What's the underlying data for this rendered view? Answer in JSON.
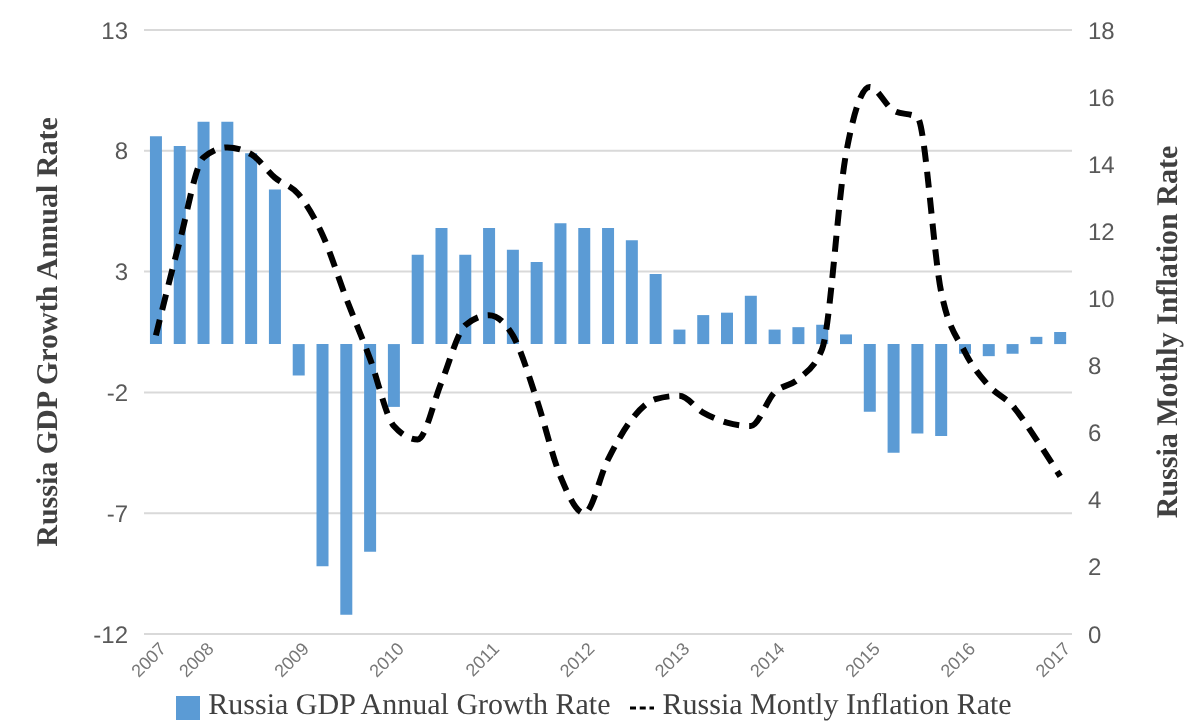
{
  "chart_data": {
    "type": "bar",
    "ylabel": "Russia GDP Growth Annual Rate",
    "y2label": "Russia Mothly Inflation Rate",
    "categories": [
      "2007",
      null,
      "2008",
      null,
      null,
      null,
      "2009",
      null,
      null,
      null,
      "2010",
      null,
      null,
      null,
      "2011",
      null,
      null,
      null,
      "2012",
      null,
      null,
      null,
      "2013",
      null,
      null,
      null,
      "2014",
      null,
      null,
      null,
      "2015",
      null,
      null,
      null,
      "2016",
      null,
      null,
      null,
      "2017"
    ],
    "series": [
      {
        "name": "Russia GDP Annual Growth Rate",
        "color": "#5b9bd5",
        "values": [
          8.6,
          8.2,
          9.2,
          9.2,
          7.9,
          6.4,
          -1.3,
          -9.2,
          -11.2,
          -8.6,
          -2.6,
          3.7,
          4.8,
          3.7,
          4.8,
          3.9,
          3.4,
          5.0,
          4.8,
          4.8,
          4.3,
          2.9,
          0.6,
          1.2,
          1.3,
          2.0,
          0.6,
          0.7,
          0.8,
          0.4,
          -2.8,
          -4.5,
          -3.7,
          -3.8,
          -0.4,
          -0.5,
          -0.4,
          0.3,
          0.5
        ]
      },
      {
        "name": "Russia Montly Inflation Rate",
        "type": "line",
        "axis": "y2",
        "color": "#000000",
        "line_style": "dashed",
        "values": [
          8.9,
          11.7,
          14.2,
          14.5,
          14.3,
          13.6,
          13.1,
          11.9,
          10.0,
          8.2,
          6.2,
          5.8,
          7.5,
          9.2,
          9.5,
          8.9,
          7.0,
          4.7,
          3.6,
          5.2,
          6.4,
          7.0,
          7.1,
          6.6,
          6.3,
          6.2,
          7.2,
          7.6,
          8.5,
          14.3,
          16.3,
          15.6,
          15.4,
          10.2,
          8.4,
          7.4,
          6.8,
          5.8,
          4.7
        ]
      }
    ],
    "ylim": [
      -12,
      13
    ],
    "yticks": [
      -12,
      -7,
      -2,
      3,
      8,
      13
    ],
    "y2lim": [
      0,
      18
    ],
    "y2ticks": [
      0,
      2,
      4,
      6,
      8,
      10,
      12,
      14,
      16,
      18
    ],
    "grid": "y",
    "legend": "bottom",
    "marker": "none"
  }
}
